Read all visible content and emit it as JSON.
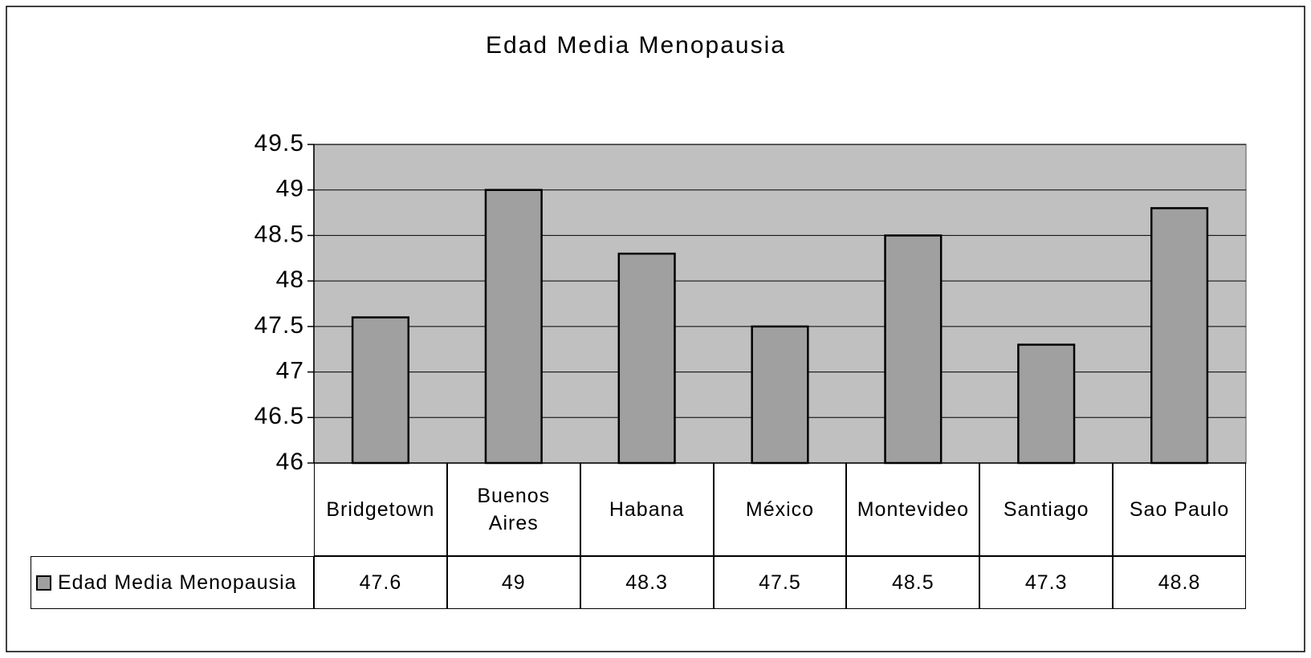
{
  "chart_data": {
    "type": "bar",
    "title": "Edad Media Menopausia",
    "categories": [
      "Bridgetown",
      "Buenos Aires",
      "Habana",
      "México",
      "Montevideo",
      "Santiago",
      "Sao Paulo"
    ],
    "series": [
      {
        "name": "Edad Media Menopausia",
        "color": "#a0a0a0",
        "values": [
          47.6,
          49,
          48.3,
          47.5,
          48.5,
          47.3,
          48.8
        ]
      }
    ],
    "ylim": [
      46,
      49.5
    ],
    "yticks": [
      46,
      46.5,
      47,
      47.5,
      48,
      48.5,
      49,
      49.5
    ],
    "grid": true,
    "data_table": true
  }
}
